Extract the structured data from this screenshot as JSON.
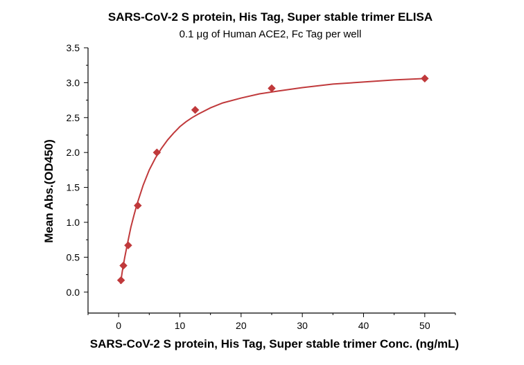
{
  "chart_data": {
    "type": "scatter",
    "title": "SARS-CoV-2 S protein, His Tag, Super stable trimer ELISA",
    "subtitle": "0.1 μg of Human ACE2, Fc Tag per well",
    "xlabel": "SARS-CoV-2 S protein, His Tag, Super stable trimer Conc. (ng/mL)",
    "ylabel": "Mean Abs.(OD450)",
    "xlim": [
      -5,
      55
    ],
    "ylim": [
      -0.3,
      3.5
    ],
    "xticks": [
      0,
      10,
      20,
      30,
      40,
      50
    ],
    "yticks": [
      0.0,
      0.5,
      1.0,
      1.5,
      2.0,
      2.5,
      3.0,
      3.5
    ],
    "grid": false,
    "colors": {
      "series": "#c0393b"
    },
    "series": [
      {
        "marker": "diamond",
        "x": [
          0.39,
          0.78,
          1.56,
          3.13,
          6.25,
          12.5,
          25,
          50
        ],
        "y": [
          0.17,
          0.38,
          0.67,
          1.24,
          2.0,
          2.61,
          2.92,
          3.06
        ]
      }
    ],
    "fit": {
      "type": "curve",
      "x": [
        0.3,
        0.6,
        1,
        1.5,
        2,
        2.5,
        3,
        4,
        5,
        6,
        7,
        8,
        9,
        10,
        11,
        12,
        13,
        15,
        17,
        20,
        23,
        26,
        30,
        35,
        40,
        45,
        50
      ],
      "y": [
        0.12,
        0.3,
        0.5,
        0.72,
        0.93,
        1.1,
        1.26,
        1.53,
        1.75,
        1.92,
        2.06,
        2.18,
        2.28,
        2.37,
        2.44,
        2.5,
        2.55,
        2.64,
        2.71,
        2.78,
        2.84,
        2.88,
        2.93,
        2.98,
        3.01,
        3.04,
        3.06
      ]
    }
  }
}
